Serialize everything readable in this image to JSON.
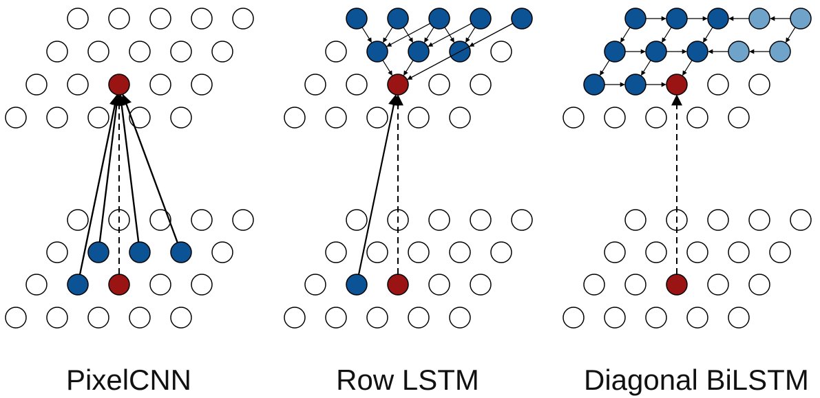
{
  "colors": {
    "empty_fill": "#ffffff",
    "outline": "#000000",
    "current_pixel": "#9b1414",
    "context_pixel": "#0b5394",
    "reverse_context_pixel": "#6fa3ca",
    "arrow": "#000000"
  },
  "panels": [
    {
      "id": "pixelcnn",
      "caption": "PixelCNN"
    },
    {
      "id": "row-lstm",
      "caption": "Row LSTM"
    },
    {
      "id": "diagonal-bilstm",
      "caption": "Diagonal BiLSTM"
    }
  ]
}
